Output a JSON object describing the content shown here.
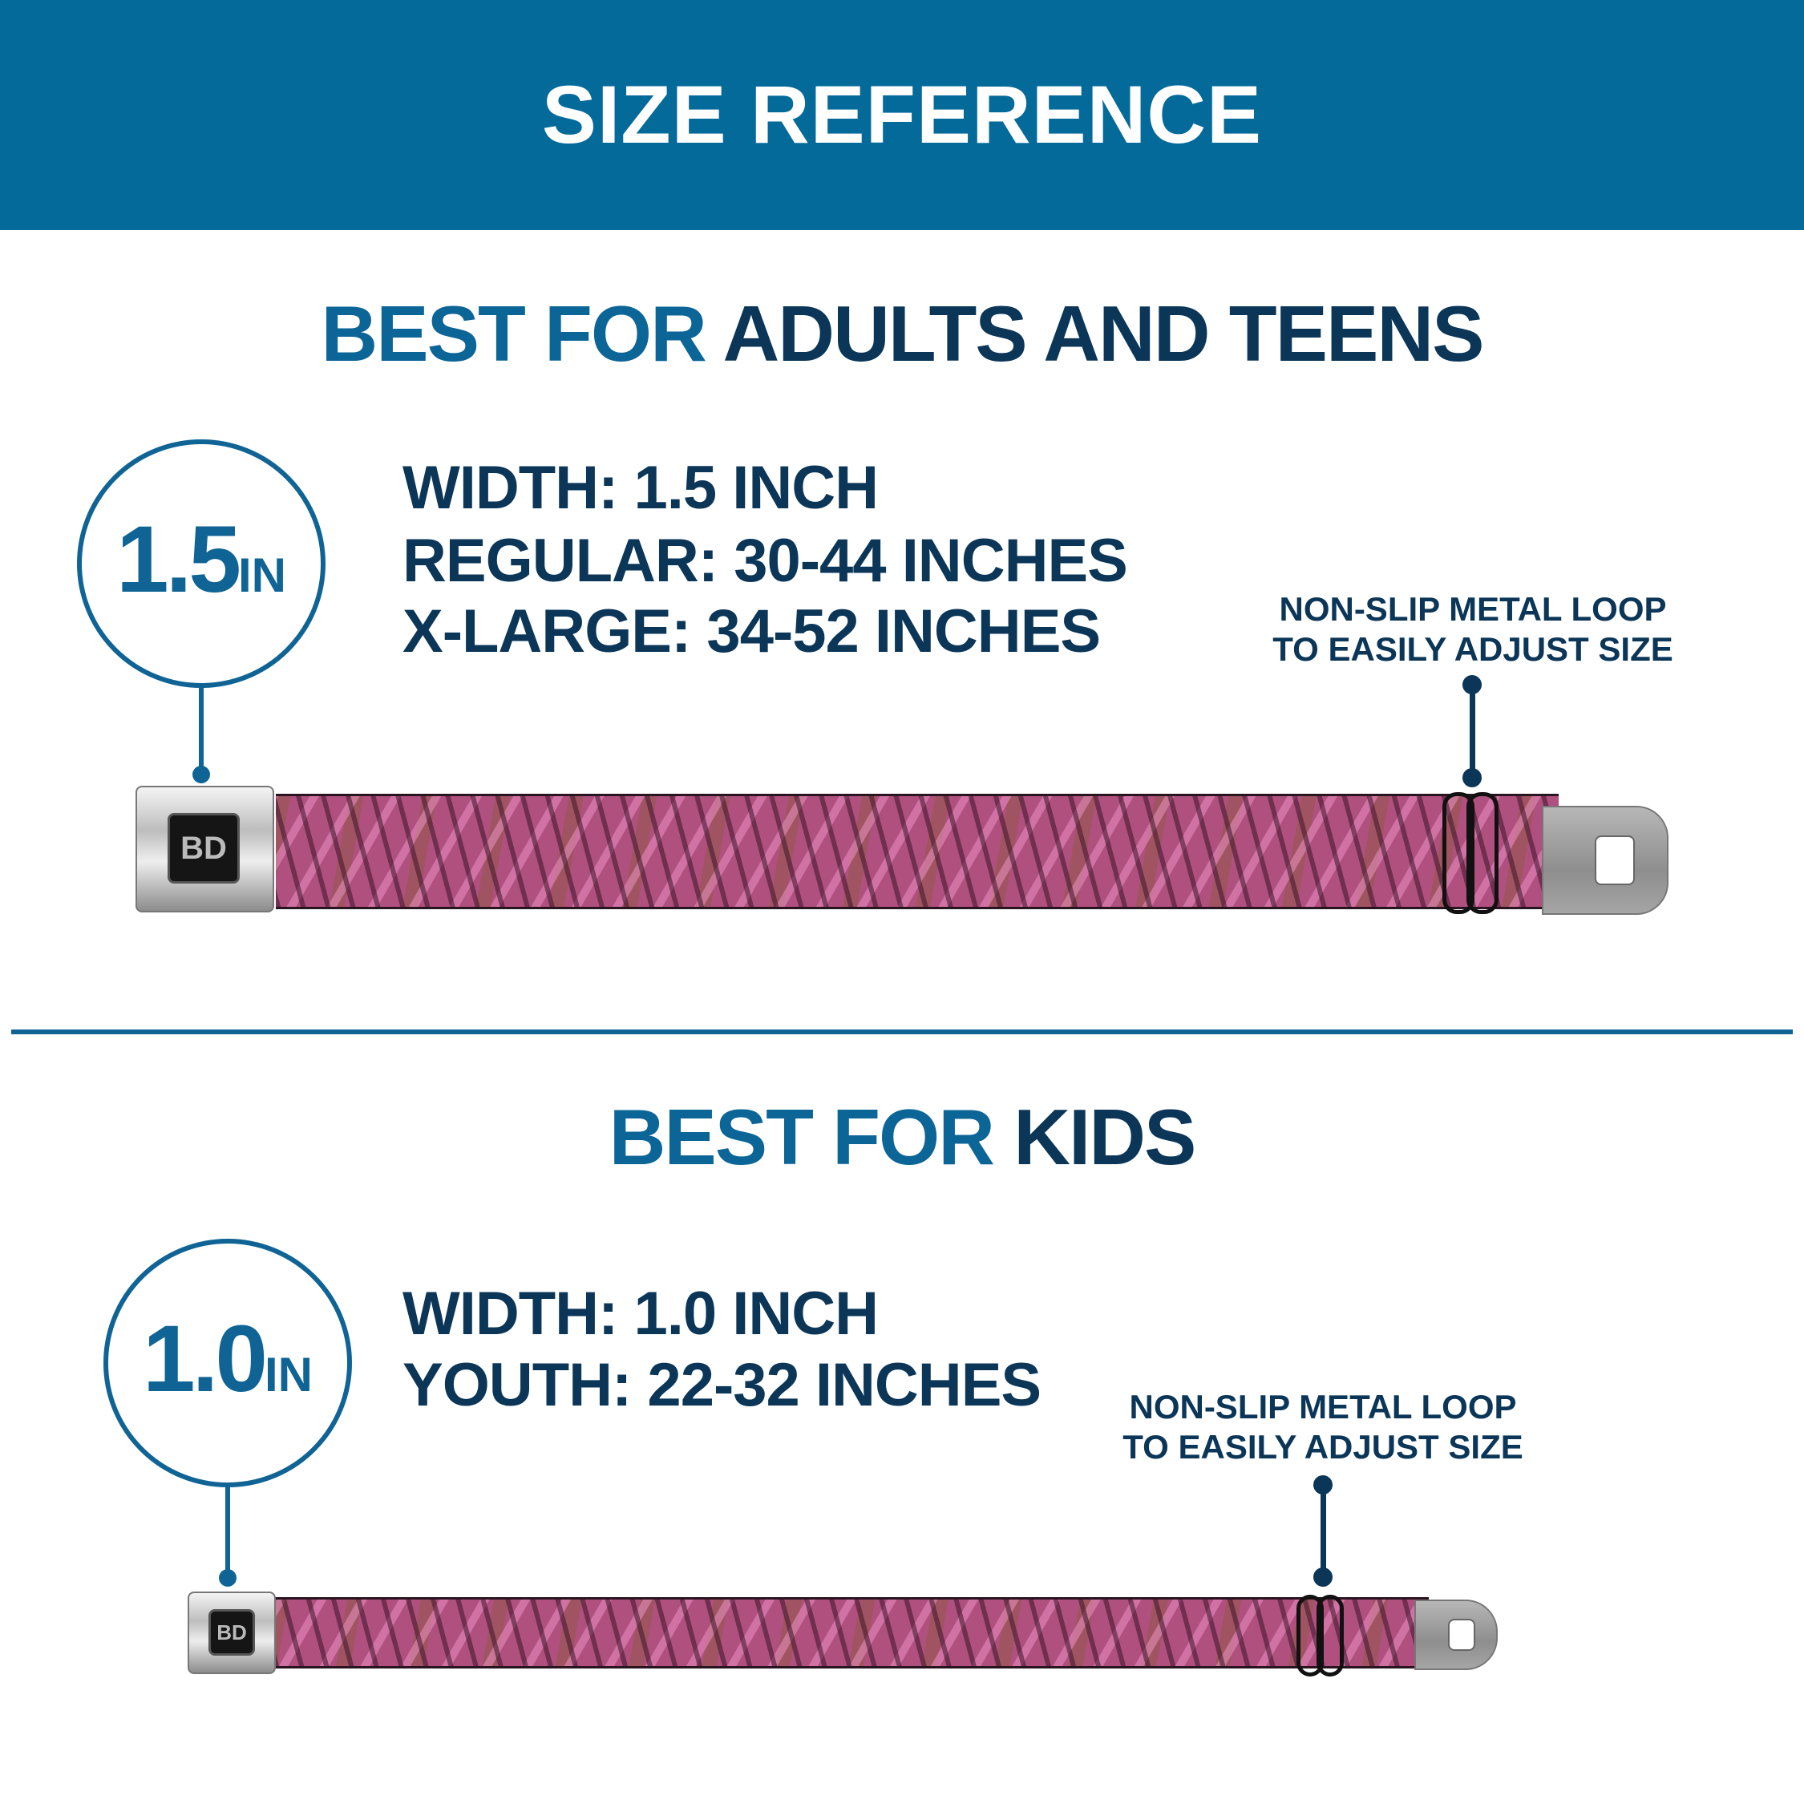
{
  "header": {
    "title": "SIZE REFERENCE"
  },
  "colors": {
    "header_bg": "#046a9a",
    "accent_blue": "#0f6495",
    "dark_navy": "#0b3658",
    "strap_pink": "#b0507f"
  },
  "adult": {
    "heading_prefix": "BEST FOR",
    "heading_main": "ADULTS AND TEENS",
    "badge_number": "1.5",
    "badge_unit": "IN",
    "specs": [
      "WIDTH: 1.5 INCH",
      "REGULAR: 30-44 INCHES",
      "X-LARGE: 34-52 INCHES"
    ],
    "note": [
      "NON-SLIP METAL LOOP",
      "TO EASILY ADJUST SIZE"
    ],
    "buckle_logo": "BD"
  },
  "kids": {
    "heading_prefix": "BEST FOR",
    "heading_main": "KIDS",
    "badge_number": "1.0",
    "badge_unit": "IN",
    "specs": [
      "WIDTH: 1.0 INCH",
      "YOUTH: 22-32 INCHES"
    ],
    "note": [
      "NON-SLIP METAL LOOP",
      "TO EASILY ADJUST SIZE"
    ],
    "buckle_logo": "BD"
  }
}
